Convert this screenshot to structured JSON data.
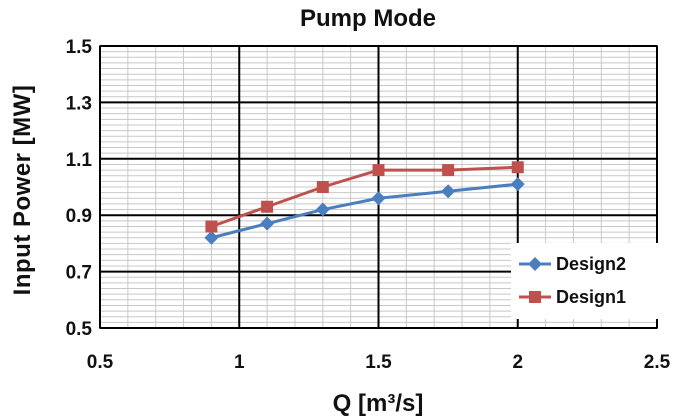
{
  "chart_data": {
    "type": "line",
    "title": "Pump Mode",
    "xlabel": "Q [m³/s]",
    "ylabel": "Input Power [MW]",
    "xlim": [
      0.5,
      2.5
    ],
    "ylim": [
      0.5,
      1.5
    ],
    "xticks": [
      "0.5",
      "1",
      "1.5",
      "2",
      "2.5"
    ],
    "yticks": [
      "0.5",
      "0.7",
      "0.9",
      "1.1",
      "1.3",
      "1.5"
    ],
    "grid": {
      "major": true,
      "minor": true
    },
    "legend_position": "bottom-right",
    "series": [
      {
        "name": "Design2",
        "color": "#4a7ebf",
        "marker": "diamond",
        "x": [
          0.9,
          1.1,
          1.3,
          1.5,
          1.75,
          2.0
        ],
        "y": [
          0.82,
          0.87,
          0.92,
          0.96,
          0.985,
          1.01
        ]
      },
      {
        "name": "Design1",
        "color": "#c0504d",
        "marker": "square",
        "x": [
          0.9,
          1.1,
          1.3,
          1.5,
          1.75,
          2.0
        ],
        "y": [
          0.86,
          0.93,
          1.0,
          1.06,
          1.06,
          1.07
        ]
      }
    ]
  }
}
